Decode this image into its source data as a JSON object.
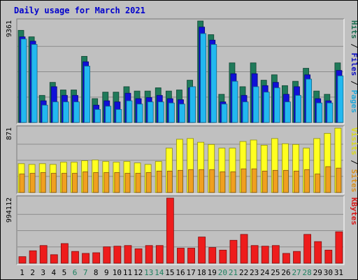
{
  "chart_data": {
    "type": "bar",
    "title": "Daily usage for March 2021",
    "categories": [
      "1",
      "2",
      "3",
      "4",
      "5",
      "6",
      "7",
      "8",
      "9",
      "10",
      "11",
      "12",
      "13",
      "14",
      "15",
      "16",
      "17",
      "18",
      "19",
      "20",
      "21",
      "22",
      "23",
      "24",
      "25",
      "26",
      "27",
      "28",
      "29",
      "30",
      "31"
    ],
    "weekend_days": [
      "6",
      "7",
      "13",
      "14",
      "20",
      "21",
      "27",
      "28"
    ],
    "panels": [
      {
        "name": "hits",
        "y_max_label": "9361",
        "ylim": [
          0,
          9361
        ],
        "right_labels": [
          "Pages",
          "Files",
          "Hits"
        ],
        "series": [
          {
            "name": "Hits",
            "color": "#1f7a5a",
            "values": [
              8500,
              7900,
              2500,
              3700,
              3000,
              3000,
              6100,
              2200,
              2800,
              2800,
              3300,
              2900,
              2900,
              3200,
              2900,
              3000,
              3900,
              9361,
              8100,
              2600,
              5500,
              3300,
              5500,
              3900,
              4400,
              3400,
              3800,
              5000,
              2900,
              2600,
              5500
            ]
          },
          {
            "name": "Files",
            "color": "#1010d8",
            "values": [
              7900,
              7500,
              2000,
              3300,
              2500,
              2500,
              5600,
              1600,
              2000,
              1900,
              2700,
              2200,
              2300,
              2500,
              2200,
              2100,
              3200,
              8800,
              7600,
              1900,
              4500,
              2500,
              4500,
              3400,
              3700,
              2600,
              3300,
              4400,
              2200,
              2000,
              4800
            ]
          },
          {
            "name": "Pages",
            "color": "#22b8f0",
            "values": [
              7700,
              7200,
              1600,
              1900,
              1900,
              1900,
              5200,
              1200,
              1500,
              1200,
              2000,
              1700,
              1900,
              1900,
              1800,
              1700,
              3300,
              8200,
              7200,
              1700,
              3800,
              1900,
              3300,
              2800,
              3200,
              1900,
              2500,
              4000,
              1800,
              1800,
              4300
            ]
          }
        ]
      },
      {
        "name": "visits",
        "y_max_label": "871",
        "ylim": [
          0,
          871
        ],
        "right_labels": [
          "Sites",
          "Visits"
        ],
        "series": [
          {
            "name": "Visits",
            "color": "#ffff20",
            "values": [
              390,
              380,
              390,
              380,
              410,
              410,
              430,
              440,
              420,
              410,
              420,
              400,
              380,
              420,
              600,
              720,
              730,
              680,
              650,
              600,
              600,
              690,
              710,
              640,
              730,
              660,
              650,
              600,
              730,
              800,
              870
            ]
          },
          {
            "name": "Sites",
            "color": "#f0a020",
            "values": [
              250,
              260,
              270,
              260,
              260,
              260,
              280,
              270,
              270,
              270,
              260,
              260,
              270,
              290,
              290,
              300,
              310,
              310,
              310,
              280,
              280,
              320,
              320,
              290,
              300,
              300,
              290,
              310,
              250,
              350,
              330
            ]
          }
        ]
      },
      {
        "name": "kbytes",
        "y_max_label": "994112",
        "ylim": [
          0,
          994112
        ],
        "right_labels": [
          "KBytes"
        ],
        "series": [
          {
            "name": "KBytes",
            "color": "#ee1c1c",
            "values": [
              100000,
              190000,
              270000,
              130000,
              300000,
              180000,
              150000,
              160000,
              250000,
              260000,
              270000,
              220000,
              270000,
              270000,
              994112,
              230000,
              230000,
              400000,
              240000,
              200000,
              350000,
              440000,
              270000,
              260000,
              270000,
              150000,
              180000,
              440000,
              330000,
              200000,
              480000
            ]
          }
        ]
      }
    ]
  },
  "colors": {
    "background": "#c0c0c0",
    "title": "#0000cc",
    "weekday_label": "#000000",
    "weekend_label": "#1f8060"
  }
}
